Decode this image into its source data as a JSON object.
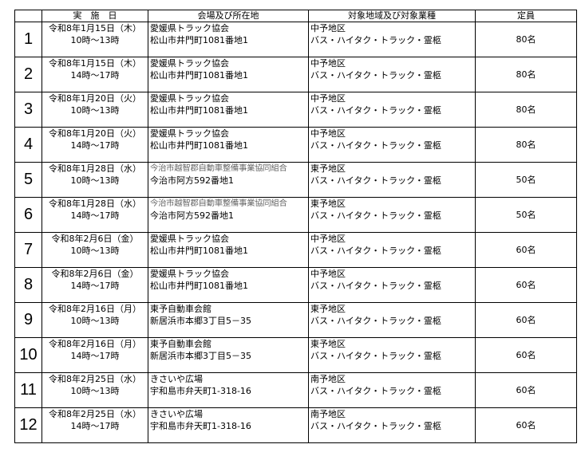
{
  "headers": {
    "no": "",
    "date": "実　施　日",
    "venue": "会場及び所在地",
    "target": "対象地域及び対象業種",
    "capacity": "定員"
  },
  "rows": [
    {
      "no": "1",
      "date": "令和8年1月15日（木）",
      "time": "10時～13時",
      "venue": "愛媛県トラック協会",
      "address": "松山市井門町1081番地1",
      "region": "中予地区",
      "industry": "バス・ハイタク・トラック・霊柩",
      "capacity": "80名"
    },
    {
      "no": "2",
      "date": "令和8年1月15日（木）",
      "time": "14時～17時",
      "venue": "愛媛県トラック協会",
      "address": "松山市井門町1081番地1",
      "region": "中予地区",
      "industry": "バス・ハイタク・トラック・霊柩",
      "capacity": "80名"
    },
    {
      "no": "3",
      "date": "令和8年1月20日（火）",
      "time": "10時～13時",
      "venue": "愛媛県トラック協会",
      "address": "松山市井門町1081番地1",
      "region": "中予地区",
      "industry": "バス・ハイタク・トラック・霊柩",
      "capacity": "80名"
    },
    {
      "no": "4",
      "date": "令和8年1月20日（火）",
      "time": "14時～17時",
      "venue": "愛媛県トラック協会",
      "address": "松山市井門町1081番地1",
      "region": "中予地区",
      "industry": "バス・ハイタク・トラック・霊柩",
      "capacity": "80名"
    },
    {
      "no": "5",
      "date": "令和8年1月28日（水）",
      "time": "10時～13時",
      "venue": "今治市越智郡自動車整備事業協同組合",
      "address": "今治市阿方592番地1",
      "region": "東予地区",
      "industry": "バス・ハイタク・トラック・霊柩",
      "capacity": "50名",
      "gray": true
    },
    {
      "no": "6",
      "date": "令和8年1月28日（水）",
      "time": "14時～17時",
      "venue": "今治市越智郡自動車整備事業協同組合",
      "address": "今治市阿方592番地1",
      "region": "東予地区",
      "industry": "バス・ハイタク・トラック・霊柩",
      "capacity": "50名",
      "gray": true
    },
    {
      "no": "7",
      "date": "令和8年2月6日（金）",
      "time": "10時～13時",
      "venue": "愛媛県トラック協会",
      "address": "松山市井門町1081番地1",
      "region": "中予地区",
      "industry": "バス・ハイタク・トラック・霊柩",
      "capacity": "60名"
    },
    {
      "no": "8",
      "date": "令和8年2月6日（金）",
      "time": "14時～17時",
      "venue": "愛媛県トラック協会",
      "address": "松山市井門町1081番地1",
      "region": "中予地区",
      "industry": "バス・ハイタク・トラック・霊柩",
      "capacity": "60名"
    },
    {
      "no": "9",
      "date": "令和8年2月16日（月）",
      "time": "10時～13時",
      "venue": "東予自動車会館",
      "address": "新居浜市本郷3丁目5－35",
      "region": "東予地区",
      "industry": "バス・ハイタク・トラック・霊柩",
      "capacity": "60名"
    },
    {
      "no": "10",
      "date": "令和8年2月16日（月）",
      "time": "14時～17時",
      "venue": "東予自動車会館",
      "address": "新居浜市本郷3丁目5－35",
      "region": "東予地区",
      "industry": "バス・ハイタク・トラック・霊柩",
      "capacity": "60名"
    },
    {
      "no": "11",
      "date": "令和8年2月25日（水）",
      "time": "10時～13時",
      "venue": "きさいや広場",
      "address": "宇和島市弁天町1-318-16",
      "region": "南予地区",
      "industry": "バス・ハイタク・トラック・霊柩",
      "capacity": "60名"
    },
    {
      "no": "12",
      "date": "令和8年2月25日（水）",
      "time": "14時～17時",
      "venue": "きさいや広場",
      "address": "宇和島市弁天町1-318-16",
      "region": "南予地区",
      "industry": "バス・ハイタク・トラック・霊柩",
      "capacity": "60名"
    }
  ]
}
